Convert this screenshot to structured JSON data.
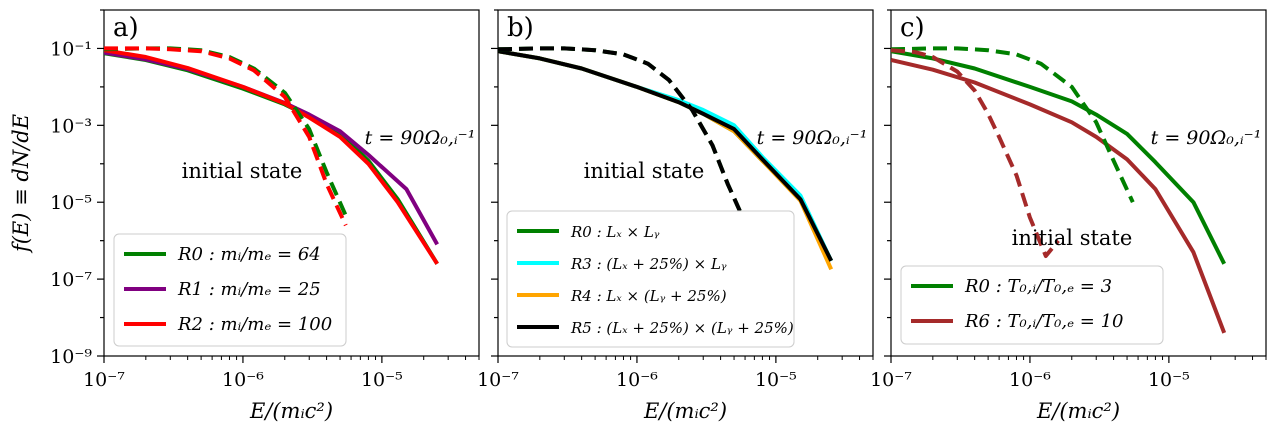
{
  "figure": {
    "ylabel": "f(E) ≡ dN/dE",
    "xlabel": "E/(mᵢc²)"
  },
  "chart_data": [
    {
      "type": "line",
      "panel_label": "a)",
      "x_scale": "log",
      "y_scale": "log",
      "xlim": [
        1e-07,
        5e-05
      ],
      "ylim": [
        1e-09,
        1
      ],
      "xlabel": "E/(mᵢc²)",
      "ylabel": "f(E) ≡ dN/dE",
      "xticks": [
        "10⁻⁷",
        "10⁻⁶",
        "10⁻⁵"
      ],
      "yticks": [
        "10⁻⁹",
        "10⁻⁷",
        "10⁻⁵",
        "10⁻³",
        "10⁻¹"
      ],
      "annotations": [
        "initial state",
        "t = 90Ω₀,ᵢ⁻¹"
      ],
      "legend_position": "lower-left",
      "series": [
        {
          "name": "R0 : mᵢ/mₑ = 64",
          "color": "#008000",
          "style": "solid",
          "x": [
            1e-07,
            2e-07,
            4e-07,
            1e-06,
            2e-06,
            3e-06,
            5e-06,
            8e-06,
            1.3e-05,
            2.5e-05
          ],
          "y": [
            0.075,
            0.05,
            0.027,
            0.009,
            0.0035,
            0.0017,
            0.0006,
            0.00012,
            1.2e-05,
            2.5e-07
          ]
        },
        {
          "name": "R1 : mᵢ/mₑ = 25",
          "color": "#800080",
          "style": "solid",
          "x": [
            1e-07,
            2e-07,
            4e-07,
            1e-06,
            2e-06,
            3e-06,
            5e-06,
            8e-06,
            1.5e-05,
            2.5e-05
          ],
          "y": [
            0.078,
            0.052,
            0.029,
            0.01,
            0.0038,
            0.0019,
            0.0007,
            0.00017,
            2.2e-05,
            8e-07
          ]
        },
        {
          "name": "R2 : mᵢ/mₑ = 100",
          "color": "#ff0000",
          "style": "solid",
          "x": [
            1e-07,
            2e-07,
            4e-07,
            1e-06,
            2e-06,
            3e-06,
            5e-06,
            8e-06,
            1.3e-05,
            2.5e-05
          ],
          "y": [
            0.09,
            0.06,
            0.031,
            0.01,
            0.0037,
            0.0016,
            0.0005,
            0.0001,
            1e-05,
            2.5e-07
          ]
        },
        {
          "name": "",
          "color": "#008000",
          "style": "dashed",
          "x": [
            1e-07,
            2e-07,
            3e-07,
            5e-07,
            8e-07,
            1.2e-06,
            2e-06,
            3e-06,
            4e-06,
            5.5e-06
          ],
          "y": [
            0.095,
            0.1,
            0.1,
            0.09,
            0.06,
            0.03,
            0.007,
            0.0008,
            6e-05,
            4.5e-06
          ]
        },
        {
          "name": "",
          "color": "#ff0000",
          "style": "dashed",
          "x": [
            1e-07,
            2e-07,
            3e-07,
            5e-07,
            8e-07,
            1.2e-06,
            2e-06,
            3e-06,
            4e-06,
            5.5e-06
          ],
          "y": [
            0.1,
            0.1,
            0.095,
            0.085,
            0.055,
            0.027,
            0.0055,
            0.0005,
            3e-05,
            2.5e-06
          ]
        }
      ]
    },
    {
      "type": "line",
      "panel_label": "b)",
      "x_scale": "log",
      "y_scale": "log",
      "xlim": [
        1e-07,
        5e-05
      ],
      "ylim": [
        1e-09,
        1
      ],
      "xlabel": "E/(mᵢc²)",
      "xticks": [
        "10⁻⁷",
        "10⁻⁶",
        "10⁻⁵"
      ],
      "annotations": [
        "initial state",
        "t = 90Ω₀,ᵢ⁻¹"
      ],
      "legend_position": "lower-left",
      "series": [
        {
          "name": "R0 : Lₓ × Lᵧ",
          "color": "#008000",
          "style": "solid",
          "x": [
            1e-07,
            2e-07,
            4e-07,
            1e-06,
            2e-06,
            3e-06,
            5e-06,
            8e-06,
            1.5e-05,
            2.5e-05
          ],
          "y": [
            0.085,
            0.055,
            0.03,
            0.01,
            0.004,
            0.002,
            0.0007,
            0.00012,
            1.2e-05,
            3e-07
          ]
        },
        {
          "name": "R3 : (Lₓ + 25%) × Lᵧ",
          "color": "#00ffff",
          "style": "solid",
          "x": [
            1e-07,
            2e-07,
            4e-07,
            1e-06,
            2e-06,
            3e-06,
            5e-06,
            8e-06,
            1.5e-05,
            2.5e-05
          ],
          "y": [
            0.085,
            0.055,
            0.03,
            0.01,
            0.0045,
            0.0025,
            0.001,
            0.00015,
            1.5e-05,
            3e-07
          ]
        },
        {
          "name": "R4 : Lₓ × (Lᵧ + 25%)",
          "color": "#ffa500",
          "style": "solid",
          "x": [
            1e-07,
            2e-07,
            4e-07,
            1e-06,
            2e-06,
            3e-06,
            5e-06,
            8e-06,
            1.5e-05,
            2.5e-05
          ],
          "y": [
            0.085,
            0.055,
            0.03,
            0.01,
            0.004,
            0.002,
            0.0007,
            0.00012,
            1.1e-05,
            1.8e-07
          ]
        },
        {
          "name": "R5 : (Lₓ + 25%) × (Lᵧ + 25%)",
          "color": "#000000",
          "style": "solid",
          "x": [
            1e-07,
            2e-07,
            4e-07,
            1e-06,
            2e-06,
            3e-06,
            5e-06,
            8e-06,
            1.5e-05,
            2.5e-05
          ],
          "y": [
            0.085,
            0.055,
            0.03,
            0.01,
            0.004,
            0.002,
            0.0008,
            0.00013,
            1.2e-05,
            3e-07
          ]
        },
        {
          "name": "",
          "color": "#008000",
          "style": "dashed",
          "x": [
            1e-07,
            2e-07,
            3e-07,
            5e-07,
            8e-07,
            1.2e-06,
            1.7e-06,
            2.5e-06,
            3.5e-06,
            4.5e-06,
            5.5e-06
          ],
          "y": [
            0.095,
            0.1,
            0.1,
            0.09,
            0.07,
            0.04,
            0.015,
            0.0025,
            0.0003,
            3e-05,
            6e-06
          ]
        },
        {
          "name": "",
          "color": "#000000",
          "style": "dashed",
          "x": [
            1e-07,
            2e-07,
            3e-07,
            5e-07,
            8e-07,
            1.2e-06,
            1.7e-06,
            2.5e-06,
            3.5e-06,
            4.5e-06,
            5.5e-06
          ],
          "y": [
            0.095,
            0.1,
            0.1,
            0.09,
            0.07,
            0.04,
            0.015,
            0.0025,
            0.0003,
            3e-05,
            6e-06
          ]
        }
      ]
    },
    {
      "type": "line",
      "panel_label": "c)",
      "x_scale": "log",
      "y_scale": "log",
      "xlim": [
        1e-07,
        5e-05
      ],
      "ylim": [
        1e-09,
        1
      ],
      "xlabel": "E/(mᵢc²)",
      "xticks": [
        "10⁻⁷",
        "10⁻⁶",
        "10⁻⁵"
      ],
      "annotations": [
        "initial state",
        "t = 90Ω₀,ᵢ⁻¹"
      ],
      "legend_position": "lower-left",
      "series": [
        {
          "name": "R0 : T₀,ᵢ/T₀,ₑ = 3",
          "color": "#008000",
          "style": "solid",
          "x": [
            1e-07,
            2e-07,
            4e-07,
            1e-06,
            2e-06,
            3e-06,
            5e-06,
            8e-06,
            1.5e-05,
            2.5e-05
          ],
          "y": [
            0.085,
            0.055,
            0.03,
            0.01,
            0.0042,
            0.0019,
            0.0006,
            0.00011,
            1e-05,
            2.5e-07
          ]
        },
        {
          "name": "R6 : T₀,ᵢ/T₀,ₑ = 10",
          "color": "#a52a2a",
          "style": "solid",
          "x": [
            1e-07,
            2e-07,
            4e-07,
            1e-06,
            2e-06,
            3e-06,
            5e-06,
            8e-06,
            1.5e-05,
            2.5e-05
          ],
          "y": [
            0.05,
            0.028,
            0.013,
            0.0035,
            0.0012,
            0.0005,
            0.00013,
            2.2e-05,
            5e-07,
            4e-09
          ]
        },
        {
          "name": "",
          "color": "#008000",
          "style": "dashed",
          "x": [
            1e-07,
            2e-07,
            3e-07,
            5e-07,
            8e-07,
            1.2e-06,
            2e-06,
            3e-06,
            4e-06,
            5.5e-06
          ],
          "y": [
            0.095,
            0.1,
            0.1,
            0.09,
            0.07,
            0.04,
            0.01,
            0.0012,
            0.00012,
            1e-05
          ]
        },
        {
          "name": "",
          "color": "#a52a2a",
          "style": "dashed",
          "x": [
            1e-07,
            1.5e-07,
            2e-07,
            3e-07,
            4e-07,
            5e-07,
            6e-07,
            8e-07,
            1e-06,
            1.3e-06,
            1.6e-06
          ],
          "y": [
            0.09,
            0.08,
            0.06,
            0.025,
            0.008,
            0.002,
            0.0005,
            5e-05,
            4e-06,
            4e-07,
            1e-06
          ]
        }
      ]
    }
  ]
}
